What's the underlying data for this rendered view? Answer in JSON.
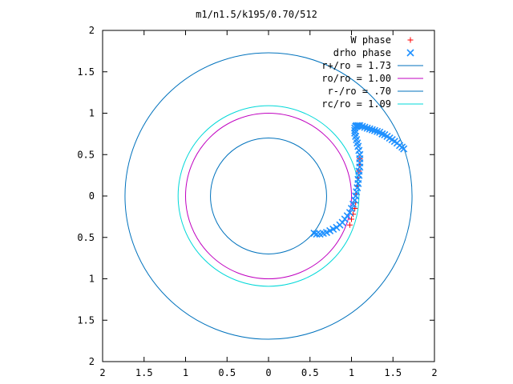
{
  "chart_data": {
    "type": "scatter",
    "title": "m1/n1.5/k195/0.70/512",
    "xlabel": "",
    "ylabel": "",
    "xlim": [
      -2,
      2
    ],
    "ylim": [
      -2,
      2
    ],
    "x_ticks": [
      "2",
      "1.5",
      "1",
      "0.5",
      "0",
      "0.5",
      "1",
      "1.5",
      "2"
    ],
    "y_ticks": [
      "2",
      "1.5",
      "1",
      "0.5",
      "0",
      "0.5",
      "1",
      "1.5",
      "2"
    ],
    "grid": false,
    "legend_position": "top-right",
    "series": [
      {
        "name": "W phase",
        "kind": "points",
        "marker": "plus",
        "color": "#ff0000",
        "x": [
          1.1,
          1.1,
          1.09,
          1.08,
          1.07,
          1.06,
          1.05,
          1.04,
          1.02,
          1.0,
          0.98
        ],
        "y": [
          0.45,
          0.38,
          0.3,
          0.22,
          0.12,
          0.02,
          -0.08,
          -0.15,
          -0.22,
          -0.28,
          -0.35
        ]
      },
      {
        "name": "drho phase",
        "kind": "points",
        "marker": "cross",
        "color": "#1e90ff",
        "x": [
          0.55,
          0.58,
          0.62,
          0.66,
          0.7,
          0.74,
          0.78,
          0.82,
          0.86,
          0.89,
          0.92,
          0.95,
          0.98,
          1.0,
          1.02,
          1.04,
          1.05,
          1.06,
          1.07,
          1.08,
          1.08,
          1.09,
          1.09,
          1.1,
          1.1,
          1.1,
          1.1,
          1.09,
          1.08,
          1.07,
          1.06,
          1.05,
          1.04,
          1.04,
          1.04,
          1.05,
          1.06,
          1.08,
          1.1,
          1.13,
          1.16,
          1.19,
          1.22,
          1.25,
          1.28,
          1.31,
          1.34,
          1.37,
          1.4,
          1.43,
          1.46,
          1.49,
          1.52,
          1.55,
          1.58,
          1.61,
          1.63
        ],
        "y": [
          -0.45,
          -0.46,
          -0.46,
          -0.45,
          -0.44,
          -0.42,
          -0.4,
          -0.38,
          -0.35,
          -0.32,
          -0.28,
          -0.24,
          -0.2,
          -0.15,
          -0.1,
          -0.05,
          0.0,
          0.05,
          0.1,
          0.15,
          0.2,
          0.25,
          0.3,
          0.35,
          0.4,
          0.45,
          0.5,
          0.55,
          0.6,
          0.64,
          0.68,
          0.72,
          0.76,
          0.79,
          0.82,
          0.84,
          0.85,
          0.85,
          0.85,
          0.84,
          0.83,
          0.82,
          0.81,
          0.8,
          0.79,
          0.78,
          0.77,
          0.75,
          0.74,
          0.72,
          0.7,
          0.68,
          0.66,
          0.64,
          0.61,
          0.59,
          0.57
        ]
      },
      {
        "name": "r+/ro = 1.73",
        "kind": "circle",
        "radius": 1.73,
        "color": "#0072bd"
      },
      {
        "name": "ro/ro = 1.00",
        "kind": "circle",
        "radius": 1.0,
        "color": "#c000c0"
      },
      {
        "name": "r-/ro = .70",
        "kind": "circle",
        "radius": 0.7,
        "color": "#0072bd"
      },
      {
        "name": "rc/ro = 1.09",
        "kind": "circle",
        "radius": 1.09,
        "color": "#00d8d8"
      }
    ]
  }
}
